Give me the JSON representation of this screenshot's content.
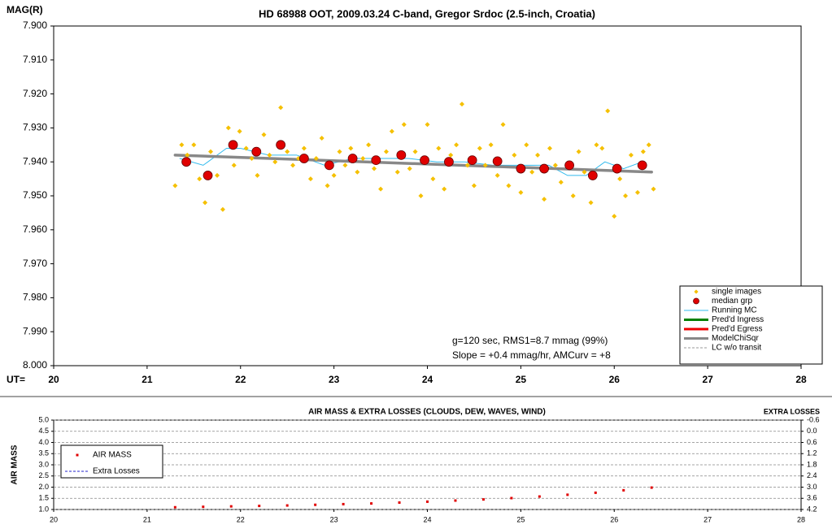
{
  "chart_data": [
    {
      "type": "scatter",
      "title": "HD 68988 OOT, 2009.03.24 C-band, Gregor Srdoc (2.5-inch, Croatia)",
      "y_label": "MAG(R)",
      "x_label": "UT=",
      "annotations": [
        "g=120 sec, RMS1=8.7 mmag (99%)",
        "Slope = +0.4 mmag/hr, AMCurv = +8"
      ],
      "xlim": [
        20,
        28
      ],
      "xticks": [
        20,
        21,
        22,
        23,
        24,
        25,
        26,
        27,
        28
      ],
      "ylim": [
        7.9,
        8.0
      ],
      "y_inverted": true,
      "yticks": [
        {
          "value": 7.9,
          "label": "7.900"
        },
        {
          "value": 7.91,
          "label": "7.910"
        },
        {
          "value": 7.92,
          "label": "7.920"
        },
        {
          "value": 7.93,
          "label": "7.930"
        },
        {
          "value": 7.94,
          "label": "7.940"
        },
        {
          "value": 7.95,
          "label": "7.950"
        },
        {
          "value": 7.96,
          "label": "7.960"
        },
        {
          "value": 7.97,
          "label": "7.970"
        },
        {
          "value": 7.98,
          "label": "7.980"
        },
        {
          "value": 7.99,
          "label": "7.990"
        },
        {
          "value": 8.0,
          "label": "8.000"
        }
      ],
      "grid": false,
      "legend": "lower right",
      "series": [
        {
          "name": "single images",
          "color": "#f5c000",
          "marker": "diamond",
          "x": [
            21.3,
            21.37,
            21.43,
            21.5,
            21.56,
            21.62,
            21.68,
            21.75,
            21.81,
            21.87,
            21.93,
            21.99,
            22.06,
            22.12,
            22.18,
            22.25,
            22.31,
            22.37,
            22.43,
            22.5,
            22.56,
            22.62,
            22.68,
            22.75,
            22.81,
            22.87,
            22.93,
            23.0,
            23.06,
            23.12,
            23.18,
            23.25,
            23.31,
            23.37,
            23.43,
            23.5,
            23.56,
            23.62,
            23.68,
            23.75,
            23.81,
            23.87,
            23.93,
            24.0,
            24.06,
            24.12,
            24.18,
            24.25,
            24.31,
            24.37,
            24.43,
            24.5,
            24.56,
            24.62,
            24.68,
            24.75,
            24.81,
            24.87,
            24.93,
            25.0,
            25.06,
            25.12,
            25.18,
            25.25,
            25.31,
            25.37,
            25.43,
            25.5,
            25.56,
            25.62,
            25.68,
            25.75,
            25.81,
            25.87,
            25.93,
            26.0,
            26.06,
            26.12,
            26.18,
            26.25,
            26.31,
            26.37,
            26.42
          ],
          "values": [
            7.947,
            7.935,
            7.938,
            7.935,
            7.945,
            7.952,
            7.937,
            7.944,
            7.954,
            7.93,
            7.941,
            7.931,
            7.936,
            7.939,
            7.944,
            7.932,
            7.938,
            7.94,
            7.924,
            7.937,
            7.941,
            7.939,
            7.936,
            7.945,
            7.939,
            7.933,
            7.947,
            7.944,
            7.937,
            7.941,
            7.936,
            7.943,
            7.939,
            7.935,
            7.942,
            7.948,
            7.937,
            7.931,
            7.943,
            7.929,
            7.942,
            7.937,
            7.95,
            7.929,
            7.945,
            7.936,
            7.948,
            7.938,
            7.935,
            7.923,
            7.941,
            7.947,
            7.936,
            7.941,
            7.935,
            7.944,
            7.929,
            7.947,
            7.938,
            7.949,
            7.935,
            7.943,
            7.938,
            7.951,
            7.936,
            7.941,
            7.946,
            7.941,
            7.95,
            7.937,
            7.943,
            7.952,
            7.935,
            7.936,
            7.925,
            7.956,
            7.945,
            7.95,
            7.938,
            7.949,
            7.937,
            7.935,
            7.948
          ]
        },
        {
          "name": "median grp",
          "color": "#e00000",
          "marker": "circle",
          "x": [
            21.42,
            21.65,
            21.92,
            22.17,
            22.43,
            22.68,
            22.95,
            23.2,
            23.45,
            23.72,
            23.97,
            24.23,
            24.48,
            24.75,
            25.0,
            25.25,
            25.52,
            25.77,
            26.03,
            26.3
          ],
          "values": [
            7.94,
            7.944,
            7.935,
            7.937,
            7.935,
            7.939,
            7.941,
            7.939,
            7.9395,
            7.938,
            7.9395,
            7.94,
            7.9395,
            7.9398,
            7.942,
            7.942,
            7.941,
            7.944,
            7.942,
            7.941
          ]
        },
        {
          "name": "Running MC",
          "color": "#33bbee",
          "line": "solid",
          "line_width": 1,
          "x": [
            21.35,
            21.6,
            21.85,
            22.0,
            22.3,
            22.6,
            22.9,
            23.2,
            23.5,
            23.8,
            24.1,
            24.4,
            24.7,
            25.0,
            25.3,
            25.5,
            25.7,
            25.9,
            26.1,
            26.3
          ],
          "values": [
            7.939,
            7.941,
            7.936,
            7.936,
            7.938,
            7.938,
            7.941,
            7.939,
            7.939,
            7.939,
            7.94,
            7.94,
            7.941,
            7.941,
            7.941,
            7.944,
            7.944,
            7.94,
            7.942,
            7.94
          ]
        },
        {
          "name": "Pred'd Ingress",
          "color": "#008000",
          "line": "solid",
          "line_width": 3,
          "x": [],
          "values": []
        },
        {
          "name": "Pred'd Egress",
          "color": "#ee0000",
          "line": "solid",
          "line_width": 3,
          "x": [],
          "values": []
        },
        {
          "name": "ModelChiSqr",
          "color": "#888888",
          "line": "solid",
          "line_width": 3.5,
          "x": [
            21.3,
            26.4
          ],
          "values": [
            7.938,
            7.943
          ]
        },
        {
          "name": "LC w/o transit",
          "color": "#999999",
          "line": "dashed",
          "line_width": 1,
          "x": [],
          "values": []
        }
      ]
    },
    {
      "type": "scatter",
      "title": "AIR MASS & EXTRA LOSSES (CLOUDS, DEW, WAVES, WIND)",
      "y_label": "AIR MASS",
      "y2_label": "EXTRA LOSSES",
      "xlim": [
        20,
        28
      ],
      "xticks": [
        20,
        21,
        22,
        23,
        24,
        25,
        26,
        27,
        28
      ],
      "ylim": [
        1.0,
        5.0
      ],
      "yticks": [
        {
          "value": 1.0,
          "label": "1.0"
        },
        1.5,
        {
          "value": 2.0,
          "label": "2.0"
        },
        2.5,
        {
          "value": 3.0,
          "label": "3.0"
        },
        3.5,
        {
          "value": 4.0,
          "label": "4.0"
        },
        4.5,
        {
          "value": 5.0,
          "label": "5.0"
        }
      ],
      "y2lim": [
        -0.6,
        4.2
      ],
      "y2_inverted": true,
      "y2ticks": [
        -0.6,
        {
          "value": 0.0,
          "label": "0.0"
        },
        0.6,
        1.2,
        1.8,
        2.4,
        {
          "value": 3.0,
          "label": "3.0"
        },
        3.6,
        4.2
      ],
      "grid": true,
      "legend": "upper left",
      "series": [
        {
          "name": "AIR MASS",
          "color": "#e00000",
          "marker": "square",
          "x": [
            21.3,
            21.6,
            21.9,
            22.2,
            22.5,
            22.8,
            23.1,
            23.4,
            23.7,
            24.0,
            24.3,
            24.6,
            24.9,
            25.2,
            25.5,
            25.8,
            26.1,
            26.4
          ],
          "values": [
            1.1,
            1.12,
            1.14,
            1.16,
            1.18,
            1.21,
            1.24,
            1.27,
            1.31,
            1.35,
            1.4,
            1.45,
            1.51,
            1.58,
            1.66,
            1.75,
            1.86,
            1.98
          ]
        },
        {
          "name": "Extra Losses",
          "color": "#2222cc",
          "line": "dashed",
          "line_width": 1,
          "axis": "y2",
          "x": [],
          "values": []
        }
      ]
    }
  ]
}
